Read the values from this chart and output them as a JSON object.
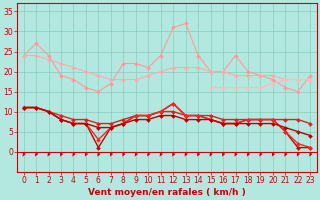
{
  "x": [
    0,
    1,
    2,
    3,
    4,
    5,
    6,
    7,
    8,
    9,
    10,
    11,
    12,
    13,
    14,
    15,
    16,
    17,
    18,
    19,
    20,
    21,
    22,
    23
  ],
  "series": [
    {
      "name": "line1_light_sparse",
      "color": "#ff9999",
      "linewidth": 0.8,
      "marker": "D",
      "markersize": 2.0,
      "y": [
        24,
        27,
        24,
        19,
        18,
        16,
        15,
        17,
        22,
        22,
        21,
        24,
        31,
        32,
        24,
        20,
        20,
        24,
        20,
        19,
        18,
        16,
        15,
        19
      ]
    },
    {
      "name": "line2_light",
      "color": "#ffaaaa",
      "linewidth": 0.8,
      "marker": "D",
      "markersize": 2.0,
      "y": [
        24,
        24,
        23,
        22,
        21,
        20,
        19,
        18,
        18,
        18,
        19,
        20,
        21,
        21,
        21,
        20,
        20,
        19,
        19,
        19,
        19,
        18,
        18,
        18
      ]
    },
    {
      "name": "line3_light_end",
      "color": "#ffbbbb",
      "linewidth": 0.8,
      "marker": "D",
      "markersize": 2.0,
      "y": [
        null,
        null,
        null,
        null,
        null,
        null,
        null,
        null,
        null,
        null,
        null,
        null,
        null,
        null,
        null,
        16,
        16,
        16,
        16,
        16,
        17,
        18,
        18,
        18
      ]
    },
    {
      "name": "line4_dark1",
      "color": "#cc0000",
      "linewidth": 1.0,
      "marker": "D",
      "markersize": 2.0,
      "y": [
        11,
        11,
        10,
        8,
        7,
        7,
        1,
        6,
        7,
        9,
        9,
        10,
        12,
        9,
        9,
        8,
        7,
        7,
        8,
        8,
        8,
        5,
        1,
        1
      ]
    },
    {
      "name": "line5_dark2",
      "color": "#dd2222",
      "linewidth": 1.0,
      "marker": "D",
      "markersize": 2.0,
      "y": [
        11,
        11,
        10,
        9,
        8,
        8,
        7,
        7,
        8,
        9,
        9,
        10,
        10,
        9,
        9,
        9,
        8,
        8,
        8,
        8,
        8,
        8,
        8,
        7
      ]
    },
    {
      "name": "line6_dark3",
      "color": "#ff2222",
      "linewidth": 1.0,
      "marker": "D",
      "markersize": 2.0,
      "y": [
        11,
        11,
        10,
        8,
        7,
        7,
        3,
        6,
        7,
        9,
        9,
        10,
        12,
        9,
        9,
        8,
        7,
        7,
        8,
        8,
        8,
        5,
        2,
        1
      ]
    },
    {
      "name": "line7_dark4",
      "color": "#bb0000",
      "linewidth": 1.0,
      "marker": "D",
      "markersize": 2.0,
      "y": [
        11,
        11,
        10,
        8,
        7,
        7,
        6,
        6,
        7,
        8,
        8,
        9,
        9,
        8,
        8,
        8,
        7,
        7,
        7,
        7,
        7,
        6,
        5,
        4
      ]
    }
  ],
  "xlabel": "Vent moyen/en rafales ( km/h )",
  "xlabel_color": "#cc0000",
  "xlabel_fontsize": 6.5,
  "xtick_labels": [
    "0",
    "1",
    "2",
    "3",
    "4",
    "5",
    "6",
    "7",
    "8",
    "9",
    "10",
    "11",
    "12",
    "13",
    "14",
    "15",
    "16",
    "17",
    "18",
    "19",
    "20",
    "21",
    "22",
    "23"
  ],
  "ytick_values": [
    0,
    5,
    10,
    15,
    20,
    25,
    30,
    35
  ],
  "ylim": [
    -5,
    37
  ],
  "xlim": [
    -0.5,
    23.5
  ],
  "background_color": "#b3e8e0",
  "grid_color": "#88ccbb",
  "tick_color": "#cc0000",
  "tick_fontsize": 5.5,
  "arrow_color": "#cc0000",
  "hline_color": "#cc0000",
  "hline_y": 0,
  "hline_lw": 0.8
}
